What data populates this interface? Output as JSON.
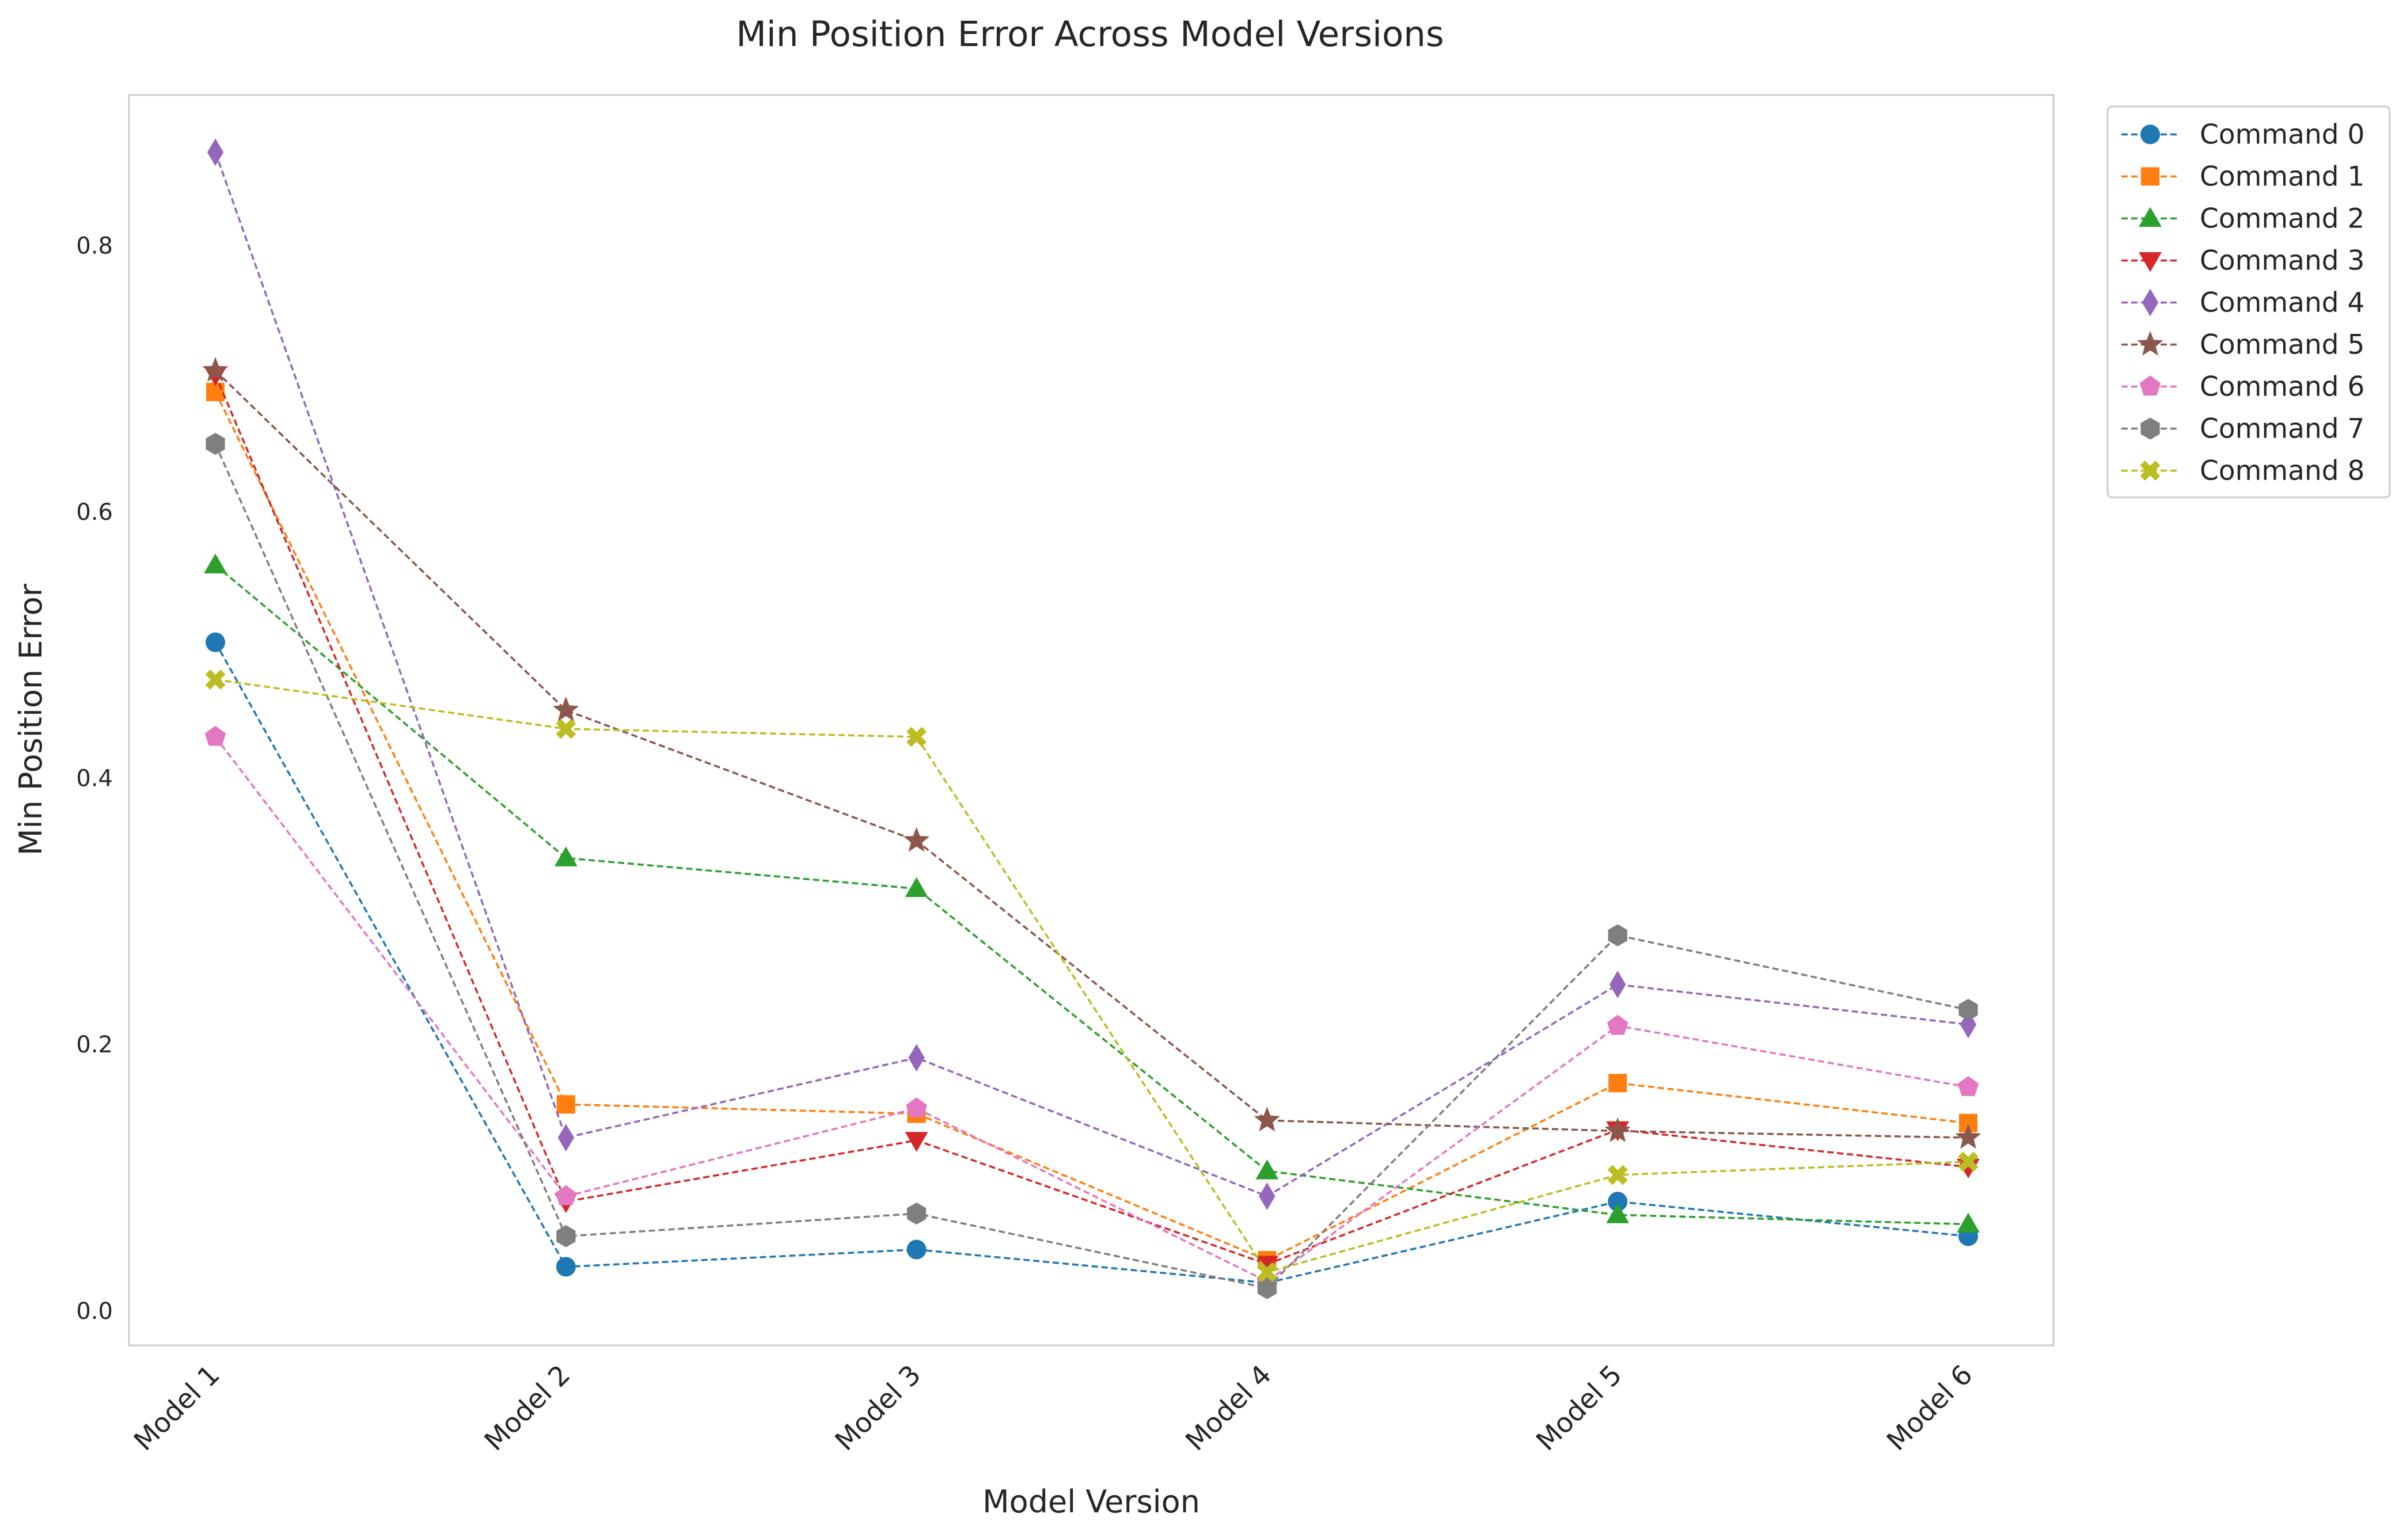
{
  "chart_data": {
    "type": "line",
    "title": "Min Position Error Across Model Versions",
    "xlabel": "Model Version",
    "ylabel": "Min Position Error",
    "categories": [
      "Model 1",
      "Model 2",
      "Model 3",
      "Model 4",
      "Model 5",
      "Model 6"
    ],
    "ylim": [
      -0.026,
      0.913
    ],
    "yticks": [
      "0.0",
      "0.2",
      "0.4",
      "0.6",
      "0.8"
    ],
    "grid": true,
    "line_style": "dashed",
    "legend": {
      "placement": "outside-top-right"
    },
    "series": [
      {
        "name": "Command 0",
        "color": "#1f77b4",
        "marker": "circle",
        "values": [
          0.502,
          0.033,
          0.046,
          0.021,
          0.082,
          0.056
        ]
      },
      {
        "name": "Command 1",
        "color": "#ff7f0e",
        "marker": "square",
        "values": [
          0.69,
          0.155,
          0.148,
          0.038,
          0.171,
          0.141
        ]
      },
      {
        "name": "Command 2",
        "color": "#2ca02c",
        "marker": "triangle-up",
        "values": [
          0.56,
          0.34,
          0.317,
          0.105,
          0.072,
          0.065
        ]
      },
      {
        "name": "Command 3",
        "color": "#d62728",
        "marker": "triangle-down",
        "values": [
          0.703,
          0.082,
          0.128,
          0.035,
          0.136,
          0.108
        ]
      },
      {
        "name": "Command 4",
        "color": "#9467bd",
        "marker": "diamond",
        "values": [
          0.87,
          0.13,
          0.19,
          0.086,
          0.245,
          0.215
        ]
      },
      {
        "name": "Command 5",
        "color": "#8c564b",
        "marker": "star",
        "values": [
          0.706,
          0.451,
          0.353,
          0.143,
          0.135,
          0.13
        ]
      },
      {
        "name": "Command 6",
        "color": "#e377c2",
        "marker": "pentagon",
        "values": [
          0.431,
          0.086,
          0.152,
          0.022,
          0.214,
          0.168
        ]
      },
      {
        "name": "Command 7",
        "color": "#7f7f7f",
        "marker": "hexagon",
        "values": [
          0.651,
          0.056,
          0.073,
          0.017,
          0.282,
          0.226
        ]
      },
      {
        "name": "Command 8",
        "color": "#bcbd22",
        "marker": "x",
        "values": [
          0.474,
          0.437,
          0.431,
          0.029,
          0.102,
          0.112
        ]
      }
    ]
  }
}
